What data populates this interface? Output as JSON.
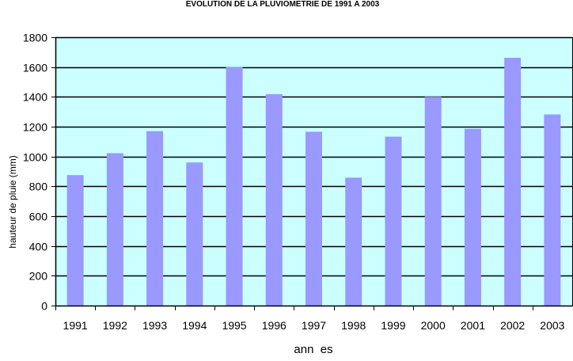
{
  "chart_data": {
    "type": "bar",
    "title": "EVOLUTION DE LA PLUVIOMETRIE DE 1991 A 2003",
    "xlabel": "ann  es",
    "ylabel": "hauteur de pluie (mm)",
    "categories": [
      "1991",
      "1992",
      "1993",
      "1994",
      "1995",
      "1996",
      "1997",
      "1998",
      "1999",
      "2000",
      "2001",
      "2002",
      "2003"
    ],
    "values": [
      875,
      1022,
      1170,
      960,
      1600,
      1418,
      1166,
      858,
      1133,
      1400,
      1186,
      1662,
      1282
    ],
    "ylim": [
      0,
      1800
    ],
    "yticks": [
      0,
      200,
      400,
      600,
      800,
      1000,
      1200,
      1400,
      1600,
      1800
    ],
    "grid": true,
    "legend": "none",
    "colors": {
      "bar": "#9999ff",
      "plot_background": "#ccffff",
      "grid": "#000000",
      "text": "#000000"
    }
  }
}
